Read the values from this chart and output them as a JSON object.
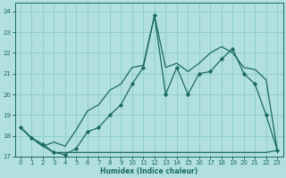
{
  "xlabel": "Humidex (Indice chaleur)",
  "background_color": "#b2e0e0",
  "grid_color": "#8ecece",
  "line_color": "#1a6b5a",
  "xlim": [
    -0.5,
    23.5
  ],
  "ylim": [
    17.0,
    24.4
  ],
  "yticks": [
    17,
    18,
    19,
    20,
    21,
    22,
    23,
    24
  ],
  "xticks": [
    0,
    1,
    2,
    3,
    4,
    5,
    6,
    7,
    8,
    9,
    10,
    11,
    12,
    13,
    14,
    15,
    16,
    17,
    18,
    19,
    20,
    21,
    22,
    23
  ],
  "main_y": [
    18.4,
    17.9,
    17.6,
    17.2,
    17.1,
    17.4,
    18.2,
    18.4,
    19.0,
    19.5,
    20.5,
    21.3,
    23.8,
    20.0,
    21.3,
    20.0,
    21.0,
    21.1,
    21.7,
    22.2,
    21.0,
    20.5,
    19.0,
    17.3
  ],
  "min_y": [
    18.4,
    17.9,
    17.5,
    17.2,
    17.2,
    17.2,
    17.2,
    17.2,
    17.2,
    17.2,
    17.2,
    17.2,
    17.2,
    17.2,
    17.2,
    17.2,
    17.2,
    17.2,
    17.2,
    17.2,
    17.2,
    17.2,
    17.2,
    17.3
  ],
  "max_y": [
    18.4,
    17.9,
    17.5,
    17.7,
    17.5,
    18.3,
    19.2,
    19.5,
    20.2,
    20.5,
    21.3,
    21.4,
    23.8,
    21.3,
    21.5,
    21.1,
    21.5,
    22.0,
    22.3,
    22.0,
    21.3,
    21.2,
    20.7,
    17.3
  ]
}
